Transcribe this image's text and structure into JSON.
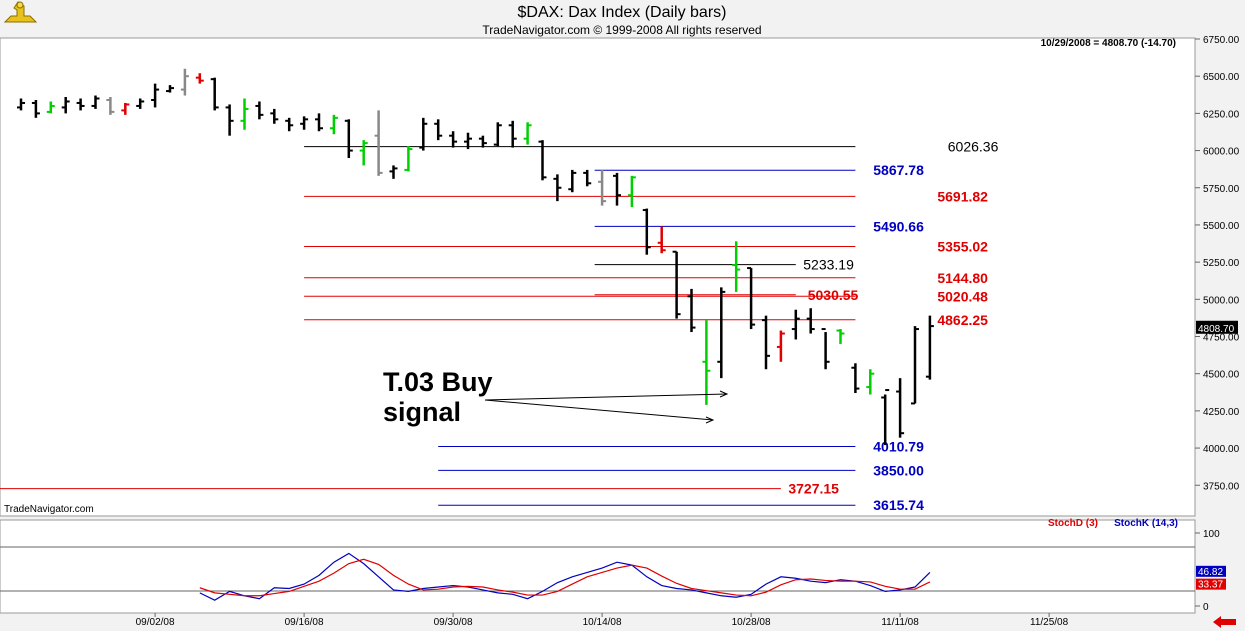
{
  "header": {
    "title": "$DAX:  Dax Index  (Daily bars)",
    "subtitle": "TradeNavigator.com © 1999-2008 All rights reserved",
    "quote": "10/29/2008 = 4808.70 (-14.70)",
    "watermark": "TradeNavigator.com"
  },
  "annotation": {
    "line1": "T.03 Buy",
    "line2": "signal"
  },
  "colors": {
    "background": "#ffffff",
    "frame": "#f2f2f2",
    "up_bar": "#00d000",
    "down_bar": "#e00000",
    "neutral_bar": "#888888",
    "red_level": "#e00000",
    "blue_level": "#0000c0",
    "black_level": "#000000",
    "stoch_d": "#e00000",
    "stoch_k": "#0000c0"
  },
  "icons": [
    "logo-icon",
    "left-arrow-icon"
  ],
  "chart_data": [
    {
      "type": "ohlc",
      "title": "$DAX:  Dax Index  (Daily bars)",
      "ylim": [
        3550,
        6750
      ],
      "yticks": [
        "6750.00",
        "6500.00",
        "6250.00",
        "6000.00",
        "5750.00",
        "5500.00",
        "5250.00",
        "5000.00",
        "4750.00",
        "4500.00",
        "4250.00",
        "4000.00",
        "3750.00"
      ],
      "ytick_values": [
        6750,
        6500,
        6250,
        6000,
        5750,
        5500,
        5250,
        5000,
        4750,
        4500,
        4250,
        4000,
        3750
      ],
      "xticks": [
        "09/02/08",
        "09/16/08",
        "09/30/08",
        "10/14/08",
        "10/28/08",
        "11/11/08",
        "11/25/08"
      ],
      "xtick_index": [
        9,
        19,
        29,
        39,
        49,
        59,
        69
      ],
      "last_price_label": "4808.70",
      "last_price": 4808.7,
      "bars": [
        {
          "i": 0,
          "o": 6290,
          "h": 6350,
          "l": 6270,
          "c": 6320,
          "col": "black"
        },
        {
          "i": 1,
          "o": 6320,
          "h": 6340,
          "l": 6220,
          "c": 6250,
          "col": "black"
        },
        {
          "i": 2,
          "o": 6260,
          "h": 6330,
          "l": 6250,
          "c": 6300,
          "col": "up"
        },
        {
          "i": 3,
          "o": 6290,
          "h": 6360,
          "l": 6250,
          "c": 6330,
          "col": "black"
        },
        {
          "i": 4,
          "o": 6320,
          "h": 6350,
          "l": 6270,
          "c": 6300,
          "col": "black"
        },
        {
          "i": 5,
          "o": 6300,
          "h": 6370,
          "l": 6280,
          "c": 6350,
          "col": "black"
        },
        {
          "i": 6,
          "o": 6340,
          "h": 6360,
          "l": 6240,
          "c": 6260,
          "col": "neutral"
        },
        {
          "i": 7,
          "o": 6270,
          "h": 6320,
          "l": 6240,
          "c": 6310,
          "col": "down"
        },
        {
          "i": 8,
          "o": 6300,
          "h": 6350,
          "l": 6280,
          "c": 6330,
          "col": "black"
        },
        {
          "i": 9,
          "o": 6340,
          "h": 6450,
          "l": 6290,
          "c": 6410,
          "col": "black"
        },
        {
          "i": 10,
          "o": 6400,
          "h": 6440,
          "l": 6390,
          "c": 6420,
          "col": "black"
        },
        {
          "i": 11,
          "o": 6410,
          "h": 6550,
          "l": 6370,
          "c": 6500,
          "col": "neutral"
        },
        {
          "i": 12,
          "o": 6490,
          "h": 6520,
          "l": 6450,
          "c": 6470,
          "col": "down"
        },
        {
          "i": 13,
          "o": 6480,
          "h": 6490,
          "l": 6270,
          "c": 6290,
          "col": "black"
        },
        {
          "i": 14,
          "o": 6290,
          "h": 6310,
          "l": 6100,
          "c": 6200,
          "col": "black"
        },
        {
          "i": 15,
          "o": 6200,
          "h": 6350,
          "l": 6140,
          "c": 6280,
          "col": "up"
        },
        {
          "i": 16,
          "o": 6300,
          "h": 6330,
          "l": 6210,
          "c": 6240,
          "col": "black"
        },
        {
          "i": 17,
          "o": 6250,
          "h": 6280,
          "l": 6180,
          "c": 6210,
          "col": "black"
        },
        {
          "i": 18,
          "o": 6200,
          "h": 6220,
          "l": 6130,
          "c": 6170,
          "col": "black"
        },
        {
          "i": 19,
          "o": 6180,
          "h": 6230,
          "l": 6140,
          "c": 6210,
          "col": "black"
        },
        {
          "i": 20,
          "o": 6210,
          "h": 6250,
          "l": 6130,
          "c": 6150,
          "col": "black"
        },
        {
          "i": 21,
          "o": 6150,
          "h": 6240,
          "l": 6110,
          "c": 6220,
          "col": "up"
        },
        {
          "i": 22,
          "o": 6200,
          "h": 6210,
          "l": 5950,
          "c": 6000,
          "col": "black"
        },
        {
          "i": 23,
          "o": 6000,
          "h": 6070,
          "l": 5900,
          "c": 6050,
          "col": "up"
        },
        {
          "i": 24,
          "o": 6100,
          "h": 6270,
          "l": 5830,
          "c": 5850,
          "col": "neutral"
        },
        {
          "i": 25,
          "o": 5860,
          "h": 5900,
          "l": 5810,
          "c": 5880,
          "col": "black"
        },
        {
          "i": 26,
          "o": 5870,
          "h": 6030,
          "l": 5860,
          "c": 6010,
          "col": "up"
        },
        {
          "i": 27,
          "o": 6020,
          "h": 6220,
          "l": 6000,
          "c": 6180,
          "col": "black"
        },
        {
          "i": 28,
          "o": 6180,
          "h": 6210,
          "l": 6070,
          "c": 6100,
          "col": "black"
        },
        {
          "i": 29,
          "o": 6100,
          "h": 6130,
          "l": 6020,
          "c": 6060,
          "col": "black"
        },
        {
          "i": 30,
          "o": 6060,
          "h": 6120,
          "l": 6010,
          "c": 6080,
          "col": "black"
        },
        {
          "i": 31,
          "o": 6080,
          "h": 6100,
          "l": 6020,
          "c": 6050,
          "col": "black"
        },
        {
          "i": 32,
          "o": 6040,
          "h": 6190,
          "l": 6030,
          "c": 6170,
          "col": "black"
        },
        {
          "i": 33,
          "o": 6170,
          "h": 6200,
          "l": 6020,
          "c": 6080,
          "col": "black"
        },
        {
          "i": 34,
          "o": 6080,
          "h": 6190,
          "l": 6040,
          "c": 6170,
          "col": "up"
        },
        {
          "i": 35,
          "o": 6060,
          "h": 6070,
          "l": 5800,
          "c": 5820,
          "col": "black"
        },
        {
          "i": 36,
          "o": 5810,
          "h": 5840,
          "l": 5660,
          "c": 5750,
          "col": "black"
        },
        {
          "i": 37,
          "o": 5740,
          "h": 5870,
          "l": 5720,
          "c": 5850,
          "col": "black"
        },
        {
          "i": 38,
          "o": 5850,
          "h": 5870,
          "l": 5760,
          "c": 5780,
          "col": "black"
        },
        {
          "i": 39,
          "o": 5790,
          "h": 5870,
          "l": 5630,
          "c": 5660,
          "col": "neutral"
        },
        {
          "i": 40,
          "o": 5830,
          "h": 5850,
          "l": 5630,
          "c": 5700,
          "col": "black"
        },
        {
          "i": 41,
          "o": 5700,
          "h": 5830,
          "l": 5620,
          "c": 5820,
          "col": "up"
        },
        {
          "i": 42,
          "o": 5600,
          "h": 5610,
          "l": 5300,
          "c": 5350,
          "col": "black"
        },
        {
          "i": 43,
          "o": 5380,
          "h": 5490,
          "l": 5310,
          "c": 5330,
          "col": "down"
        },
        {
          "i": 44,
          "o": 5320,
          "h": 5320,
          "l": 4870,
          "c": 4900,
          "col": "black"
        },
        {
          "i": 45,
          "o": 5020,
          "h": 5070,
          "l": 4780,
          "c": 4810,
          "col": "black"
        },
        {
          "i": 46,
          "o": 4580,
          "h": 4860,
          "l": 4290,
          "c": 4520,
          "col": "up"
        },
        {
          "i": 47,
          "o": 4580,
          "h": 5080,
          "l": 4470,
          "c": 5050,
          "col": "black"
        },
        {
          "i": 48,
          "o": 5230,
          "h": 5390,
          "l": 5050,
          "c": 5200,
          "col": "up"
        },
        {
          "i": 49,
          "o": 5210,
          "h": 5210,
          "l": 4800,
          "c": 4830,
          "col": "black"
        },
        {
          "i": 50,
          "o": 4860,
          "h": 4890,
          "l": 4530,
          "c": 4620,
          "col": "black"
        },
        {
          "i": 51,
          "o": 4680,
          "h": 4790,
          "l": 4580,
          "c": 4770,
          "col": "down"
        },
        {
          "i": 52,
          "o": 4800,
          "h": 4930,
          "l": 4730,
          "c": 4870,
          "col": "black"
        },
        {
          "i": 53,
          "o": 4870,
          "h": 4940,
          "l": 4770,
          "c": 4800,
          "col": "black"
        },
        {
          "i": 54,
          "o": 4800,
          "h": 4780,
          "l": 4530,
          "c": 4580,
          "col": "black"
        },
        {
          "i": 55,
          "o": 4790,
          "h": 4800,
          "l": 4700,
          "c": 4770,
          "col": "up"
        },
        {
          "i": 56,
          "o": 4540,
          "h": 4570,
          "l": 4370,
          "c": 4400,
          "col": "black"
        },
        {
          "i": 57,
          "o": 4410,
          "h": 4530,
          "l": 4360,
          "c": 4500,
          "col": "up"
        },
        {
          "i": 58,
          "o": 4340,
          "h": 4360,
          "l": 4020,
          "c": 4390,
          "col": "black"
        },
        {
          "i": 59,
          "o": 4380,
          "h": 4470,
          "l": 4070,
          "c": 4100,
          "col": "black"
        },
        {
          "i": 60,
          "o": 4300,
          "h": 4820,
          "l": 4300,
          "c": 4800,
          "col": "black"
        },
        {
          "i": 61,
          "o": 4480,
          "h": 4890,
          "l": 4460,
          "c": 4820,
          "col": "black"
        }
      ],
      "levels": [
        {
          "value": 6026.36,
          "label": "6026.36",
          "color": "black"
        },
        {
          "value": 5867.78,
          "label": "5867.78",
          "color": "blue"
        },
        {
          "value": 5691.82,
          "label": "5691.82",
          "color": "red"
        },
        {
          "value": 5490.66,
          "label": "5490.66",
          "color": "blue"
        },
        {
          "value": 5355.02,
          "label": "5355.02",
          "color": "red"
        },
        {
          "value": 5233.19,
          "label": "5233.19",
          "color": "black"
        },
        {
          "value": 5144.8,
          "label": "5144.80",
          "color": "red"
        },
        {
          "value": 5030.55,
          "label": "5030.55",
          "color": "red"
        },
        {
          "value": 5020.48,
          "label": "5020.48",
          "color": "red"
        },
        {
          "value": 4862.25,
          "label": "4862.25",
          "color": "red"
        },
        {
          "value": 4010.79,
          "label": "4010.79",
          "color": "blue"
        },
        {
          "value": 3850.0,
          "label": "3850.00",
          "color": "blue"
        },
        {
          "value": 3727.15,
          "label": "3727.15",
          "color": "red"
        },
        {
          "value": 3615.74,
          "label": "3615.74",
          "color": "blue"
        }
      ]
    },
    {
      "type": "line",
      "legend": [
        "StochD (3)",
        "StochK (14,3)"
      ],
      "ylim": [
        0,
        100
      ],
      "yticks": [
        "100",
        "0"
      ],
      "ytick_values": [
        100,
        0
      ],
      "last_values": {
        "k": "46.82",
        "d": "33.37"
      },
      "series": [
        {
          "name": "StochK (14,3)",
          "color": "blue",
          "values": [
            18,
            8,
            20,
            14,
            10,
            25,
            24,
            30,
            42,
            60,
            72,
            58,
            40,
            22,
            20,
            24,
            26,
            28,
            26,
            22,
            18,
            16,
            10,
            20,
            32,
            40,
            46,
            52,
            60,
            56,
            40,
            28,
            24,
            22,
            18,
            14,
            12,
            16,
            30,
            40,
            38,
            34,
            32,
            36,
            34,
            28,
            20,
            22,
            26,
            46
          ]
        },
        {
          "name": "StochD (3)",
          "color": "red",
          "values": [
            25,
            18,
            16,
            14,
            14,
            17,
            20,
            27,
            34,
            45,
            58,
            64,
            57,
            42,
            30,
            22,
            23,
            26,
            27,
            26,
            22,
            19,
            15,
            15,
            20,
            30,
            40,
            46,
            52,
            56,
            52,
            41,
            31,
            24,
            21,
            18,
            15,
            14,
            19,
            29,
            36,
            37,
            35,
            34,
            34,
            33,
            27,
            23,
            23,
            33
          ]
        }
      ]
    }
  ]
}
